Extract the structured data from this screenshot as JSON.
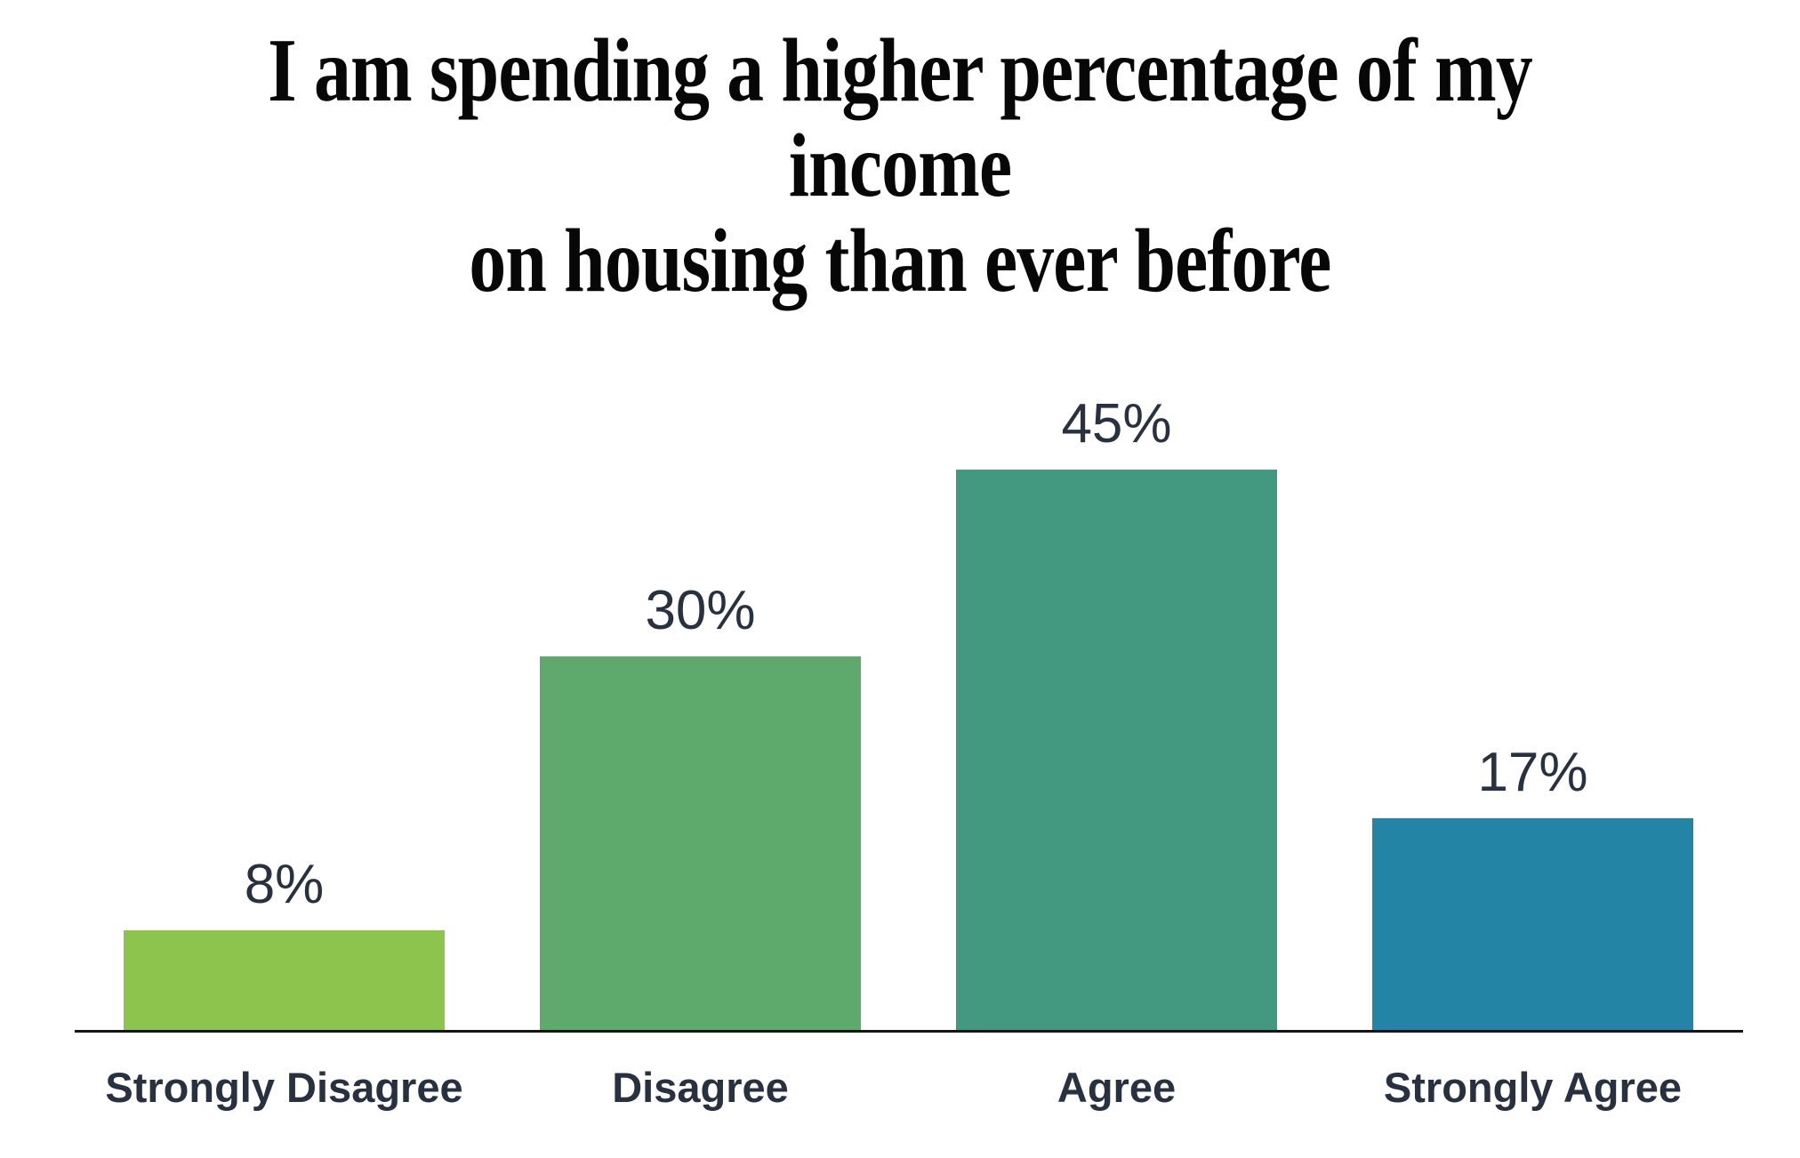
{
  "page": {
    "background_color": "#ffffff"
  },
  "title": {
    "lines": [
      "I am spending a higher percentage of my income",
      "on housing than ever before"
    ],
    "color": "#070707"
  },
  "chart_data": {
    "type": "bar",
    "title": "I am spending a higher percentage of my income on housing than ever before",
    "categories": [
      "Strongly Disagree",
      "Disagree",
      "Agree",
      "Strongly Agree"
    ],
    "values": [
      8,
      30,
      45,
      17
    ],
    "value_labels": [
      "8%",
      "30%",
      "45%",
      "17%"
    ],
    "colors": [
      "#8dc44d",
      "#5daa6c",
      "#43997f",
      "#2484a5"
    ],
    "xlabel": "",
    "ylabel": "",
    "ylim": [
      0,
      50
    ],
    "grid": false,
    "legend": false,
    "label_color": "#28313f",
    "axis_color": "#141414"
  }
}
